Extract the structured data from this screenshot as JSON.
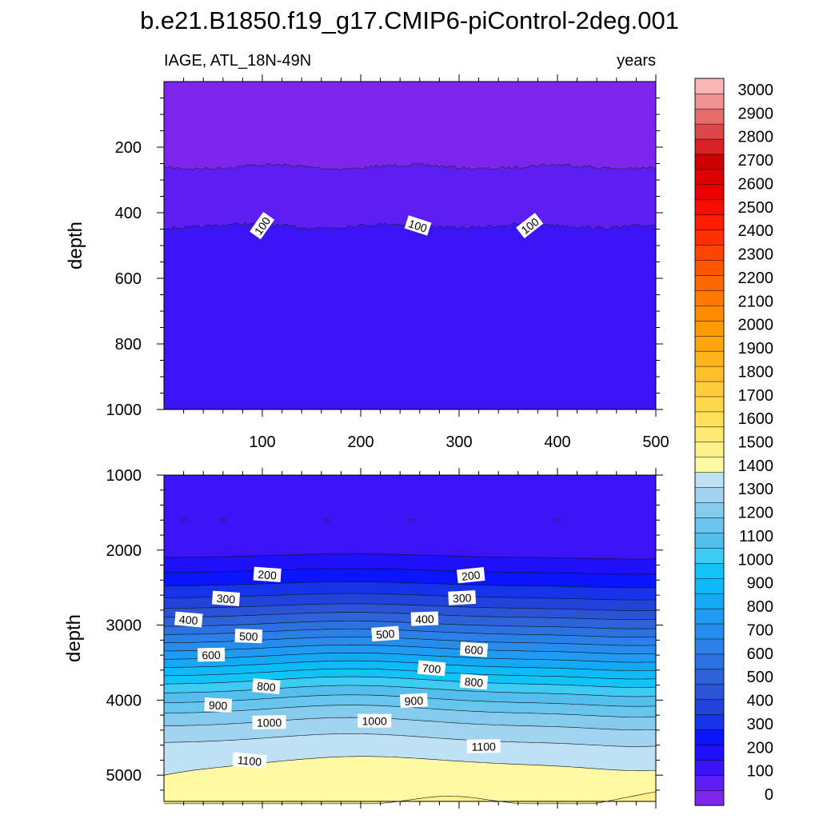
{
  "title": "b.e21.B1850.f19_g17.CMIP6-piControl-2deg.001",
  "colors": {
    "bands": [
      "#7c25ec",
      "#5d1ef4",
      "#3a14f7",
      "#1f10fb",
      "#0a14fd",
      "#1534ea",
      "#2142db",
      "#2a53d6",
      "#2d62db",
      "#2c71e0",
      "#2a80e6",
      "#268ded",
      "#1f9bf3",
      "#14a9f6",
      "#0ebaf7",
      "#12c3f8",
      "#3dcaf3",
      "#54bfed",
      "#68c5ee",
      "#84cbee",
      "#a2d3f0",
      "#bfe1f5",
      "#fff9a3",
      "#fff18a",
      "#ffe870",
      "#ffe05a",
      "#ffd74a",
      "#ffcc3b",
      "#ffbf2a",
      "#ffb31c",
      "#ffa50e",
      "#ff9a05",
      "#ff8a00",
      "#ff7a00",
      "#ff6800",
      "#ff5500",
      "#ff4300",
      "#ff3000",
      "#ff1d00",
      "#f50e00",
      "#ea0000",
      "#de0000",
      "#cf0000",
      "#d62222",
      "#de4747",
      "#e66c6c",
      "#f09292",
      "#f8b5b5"
    ]
  },
  "chart_data": [
    {
      "type": "contour",
      "panel": "upper",
      "left_label": "IAGE, ATL_18N-49N",
      "right_label": "years",
      "xlabel": "",
      "ylabel": "depth",
      "xlim": [
        0,
        500
      ],
      "ylim": [
        1000,
        0
      ],
      "x_ticks": [
        100,
        200,
        300,
        400,
        500
      ],
      "y_ticks": [
        200,
        400,
        600,
        800,
        1000
      ],
      "contours": [
        {
          "level": 50,
          "mean_depth": 260,
          "labeled": false
        },
        {
          "level": 100,
          "mean_depth": 440,
          "labeled": true,
          "label_x": [
            100,
            258,
            372
          ]
        }
      ],
      "labels": [
        "100",
        "100",
        "100"
      ]
    },
    {
      "type": "contour",
      "panel": "lower",
      "xlabel": "",
      "ylabel": "depth",
      "xlim": [
        0,
        500
      ],
      "ylim": [
        5350,
        1000
      ],
      "y_ticks": [
        1000,
        2000,
        3000,
        4000,
        5000
      ],
      "contour_depths": [
        {
          "level": 150,
          "depth": 2100
        },
        {
          "level": 200,
          "depth": 2300
        },
        {
          "level": 250,
          "depth": 2480
        },
        {
          "level": 300,
          "depth": 2640
        },
        {
          "level": 350,
          "depth": 2780
        },
        {
          "level": 400,
          "depth": 2900
        },
        {
          "level": 450,
          "depth": 3020
        },
        {
          "level": 500,
          "depth": 3130
        },
        {
          "level": 550,
          "depth": 3240
        },
        {
          "level": 600,
          "depth": 3350
        },
        {
          "level": 650,
          "depth": 3460
        },
        {
          "level": 700,
          "depth": 3570
        },
        {
          "level": 750,
          "depth": 3680
        },
        {
          "level": 800,
          "depth": 3790
        },
        {
          "level": 850,
          "depth": 3910
        },
        {
          "level": 900,
          "depth": 4040
        },
        {
          "level": 950,
          "depth": 4180
        },
        {
          "level": 1000,
          "depth": 4350
        },
        {
          "level": 1050,
          "depth": 4570
        },
        {
          "level": 1100,
          "depth": 4900
        },
        {
          "level": 1150,
          "depth": 5300
        }
      ],
      "labels": [
        {
          "text": "200",
          "x": 105,
          "depth": 2330
        },
        {
          "text": "200",
          "x": 312,
          "depth": 2340
        },
        {
          "text": "300",
          "x": 63,
          "depth": 2650
        },
        {
          "text": "300",
          "x": 303,
          "depth": 2640
        },
        {
          "text": "400",
          "x": 25,
          "depth": 2930
        },
        {
          "text": "400",
          "x": 265,
          "depth": 2920
        },
        {
          "text": "500",
          "x": 86,
          "depth": 3150
        },
        {
          "text": "500",
          "x": 225,
          "depth": 3120
        },
        {
          "text": "600",
          "x": 48,
          "depth": 3400
        },
        {
          "text": "600",
          "x": 315,
          "depth": 3330
        },
        {
          "text": "700",
          "x": 272,
          "depth": 3580
        },
        {
          "text": "800",
          "x": 104,
          "depth": 3820
        },
        {
          "text": "800",
          "x": 315,
          "depth": 3760
        },
        {
          "text": "900",
          "x": 55,
          "depth": 4070
        },
        {
          "text": "900",
          "x": 254,
          "depth": 4010
        },
        {
          "text": "1000",
          "x": 107,
          "depth": 4300
        },
        {
          "text": "1000",
          "x": 214,
          "depth": 4280
        },
        {
          "text": "1100",
          "x": 87,
          "depth": 4810
        },
        {
          "text": "1100",
          "x": 325,
          "depth": 4620
        }
      ]
    },
    {
      "type": "colorbar",
      "tick_labels": [
        "0",
        "100",
        "200",
        "300",
        "400",
        "500",
        "600",
        "700",
        "800",
        "900",
        "1000",
        "1100",
        "1200",
        "1300",
        "1400",
        "1500",
        "1600",
        "1700",
        "1800",
        "1900",
        "2000",
        "2100",
        "2200",
        "2300",
        "2400",
        "2500",
        "2600",
        "2700",
        "2800",
        "2900",
        "3000"
      ]
    }
  ]
}
